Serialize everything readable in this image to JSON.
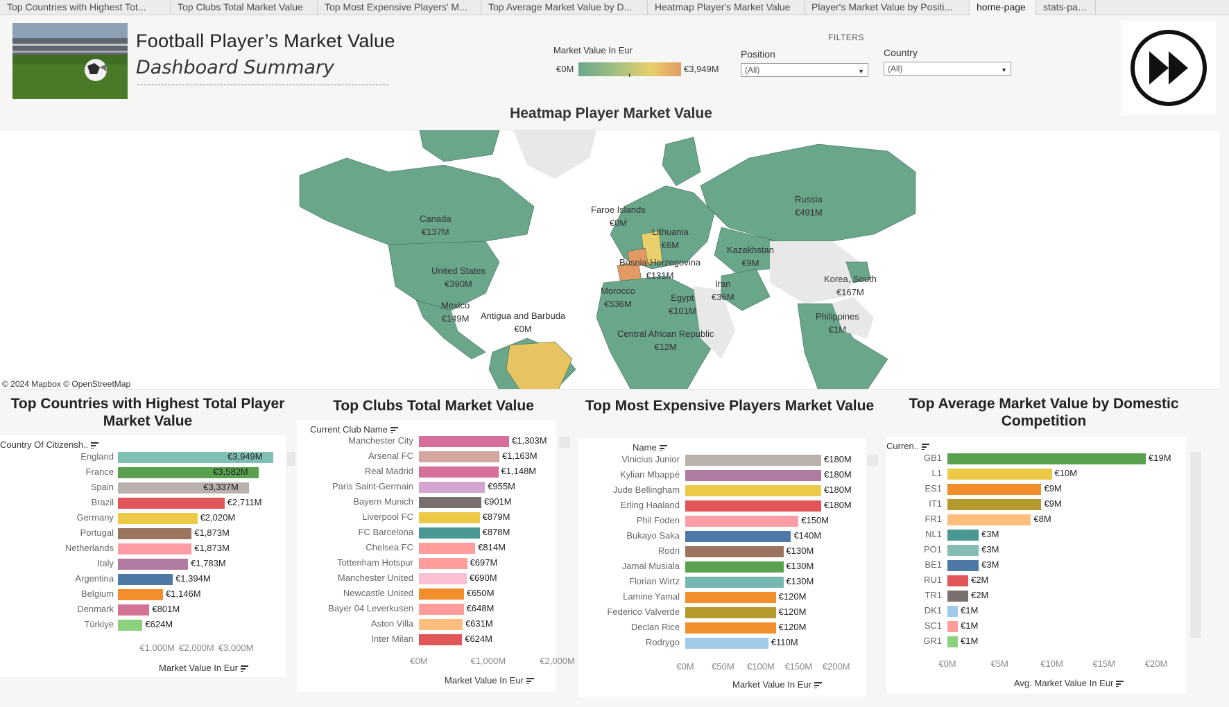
{
  "tabs": [
    {
      "label": "Top Countries with Highest Tot..."
    },
    {
      "label": "Top Clubs Total Market Value"
    },
    {
      "label": "Top Most Expensive Players' M..."
    },
    {
      "label": "Top Average Market Value by D..."
    },
    {
      "label": "Heatmap Player's Market Value"
    },
    {
      "label": "Player's Market Value by Positi..."
    },
    {
      "label": "home-page"
    },
    {
      "label": "stats-page"
    }
  ],
  "header": {
    "title": "Football Player’s Market Value",
    "subtitle": "Dashboard Summary",
    "filters_label": "FILTERS"
  },
  "legend": {
    "title": "Market Value In Eur",
    "min": "€0M",
    "max": "€3,949M"
  },
  "filters": {
    "position": {
      "label": "Position",
      "value": "(All)"
    },
    "country": {
      "label": "Country",
      "value": "(All)"
    }
  },
  "map": {
    "title": "Heatmap Player Market Value",
    "attribution": "© 2024 Mapbox  © OpenStreetMap",
    "labels": [
      {
        "name": "Canada",
        "value": "€137M"
      },
      {
        "name": "United States",
        "value": "€390M"
      },
      {
        "name": "Mexico",
        "value": "€149M"
      },
      {
        "name": "Antigua and Barbuda",
        "value": "€0M"
      },
      {
        "name": "Faroe Islands",
        "value": "€0M"
      },
      {
        "name": "Lithuania",
        "value": "€6M"
      },
      {
        "name": "Bosnia-Herzegovina",
        "value": "€131M"
      },
      {
        "name": "Morocco",
        "value": "€536M"
      },
      {
        "name": "Egypt",
        "value": "€101M"
      },
      {
        "name": "Central African Republic",
        "value": "€12M"
      },
      {
        "name": "Kazakhstan",
        "value": "€9M"
      },
      {
        "name": "Iran",
        "value": "€36M"
      },
      {
        "name": "Russia",
        "value": "€491M"
      },
      {
        "name": "Korea, South",
        "value": "€167M"
      },
      {
        "name": "Philippines",
        "value": "€1M"
      }
    ]
  },
  "countries_chart": {
    "title": "Top Countries with Highest Total Player Market Value",
    "column_header": "Country Of Citizensh..",
    "axis_title": "Market Value In Eur",
    "ticks": [
      "€1,000M",
      "€2,000M",
      "€3,000M"
    ],
    "value_labels": [
      "€3,949M",
      "€3,582M",
      "€3,337M",
      "€2,711M",
      "€2,020M",
      "€1,873M",
      "€1,873M",
      "€1,783M",
      "€1,394M",
      "€1,146M",
      "€801M",
      "€624M"
    ]
  },
  "clubs_chart": {
    "title": "Top Clubs Total Market Value",
    "column_header": "Current Club Name",
    "axis_title": "Market Value In Eur",
    "ticks": [
      "€0M",
      "€1,000M",
      "€2,000M"
    ],
    "value_labels": [
      "€1,303M",
      "€1,163M",
      "€1,148M",
      "€955M",
      "€901M",
      "€879M",
      "€878M",
      "€814M",
      "€697M",
      "€690M",
      "€650M",
      "€648M",
      "€631M",
      "€624M"
    ]
  },
  "players_chart": {
    "title": "Top Most Expensive Players Market Value",
    "column_header": "Name",
    "axis_title": "Market Value In Eur",
    "ticks": [
      "€0M",
      "€50M",
      "€100M",
      "€150M",
      "€200M"
    ],
    "value_labels": [
      "€180M",
      "€180M",
      "€180M",
      "€180M",
      "€150M",
      "€140M",
      "€130M",
      "€130M",
      "€130M",
      "€120M",
      "€120M",
      "€120M",
      "€110M"
    ]
  },
  "competition_chart": {
    "title": "Top Average Market Value by Domestic Competition",
    "column_header": "Curren..",
    "axis_title": "Avg. Market Value In Eur",
    "ticks": [
      "€0M",
      "€5M",
      "€10M",
      "€15M",
      "€20M"
    ],
    "value_labels": [
      "€19M",
      "€10M",
      "€9M",
      "€9M",
      "€8M",
      "€3M",
      "€3M",
      "€3M",
      "€2M",
      "€2M",
      "€1M",
      "€1M",
      "€1M"
    ]
  },
  "chart_data": [
    {
      "type": "bar",
      "title": "Top Countries with Highest Total Player Market Value",
      "ylabel": "Country Of Citizensh..",
      "xlabel": "Market Value In Eur",
      "categories": [
        "England",
        "France",
        "Spain",
        "Brazil",
        "Germany",
        "Portugal",
        "Netherlands",
        "Italy",
        "Argentina",
        "Belgium",
        "Denmark",
        "Türkiye"
      ],
      "values": [
        3949,
        3582,
        3337,
        2711,
        2020,
        1873,
        1873,
        1783,
        1394,
        1146,
        801,
        624
      ],
      "xlim": [
        0,
        3949
      ],
      "colors": [
        "#7fbfb4",
        "#59a14f",
        "#bab0ac",
        "#e15759",
        "#edc948",
        "#9c755f",
        "#ff9da7",
        "#b07aa1",
        "#4e79a7",
        "#f28e2b",
        "#d37295",
        "#8cd17d"
      ]
    },
    {
      "type": "bar",
      "title": "Top Clubs Total Market Value",
      "ylabel": "Current Club Name",
      "xlabel": "Market Value In Eur",
      "categories": [
        "Manchester City",
        "Arsenal FC",
        "Real Madrid",
        "Paris Saint-Germain",
        "Bayern Munich",
        "Liverpool FC",
        "FC Barcelona",
        "Chelsea FC",
        "Tottenham Hotspur",
        "Manchester United",
        "Newcastle United",
        "Bayer 04 Leverkusen",
        "Aston Villa",
        "Inter Milan"
      ],
      "values": [
        1303,
        1163,
        1148,
        955,
        901,
        879,
        878,
        814,
        697,
        690,
        650,
        648,
        631,
        624
      ],
      "xlim": [
        0,
        2000
      ],
      "colors": [
        "#d6709b",
        "#d4a6a0",
        "#d6709b",
        "#d4a6cf",
        "#79706e",
        "#edc948",
        "#499894",
        "#ff9d9a",
        "#ff9d9a",
        "#fabfd2",
        "#f28e2b",
        "#ff9d9a",
        "#ffbe7d",
        "#e15759"
      ]
    },
    {
      "type": "bar",
      "title": "Top Most Expensive Players Market Value",
      "ylabel": "Name",
      "xlabel": "Market Value In Eur",
      "categories": [
        "Vinicius Junior",
        "Kylian Mbappé",
        "Jude Bellingham",
        "Erling Haaland",
        "Phil Foden",
        "Bukayo Saka",
        "Rodri",
        "Jamal Musiala",
        "Florian Wirtz",
        "Lamine Yamal",
        "Federico Valverde",
        "Declan Rice",
        "Rodrygo"
      ],
      "values": [
        180,
        180,
        180,
        180,
        150,
        140,
        130,
        130,
        130,
        120,
        120,
        120,
        110
      ],
      "xlim": [
        0,
        200
      ],
      "colors": [
        "#bab0ac",
        "#b07aa1",
        "#edc948",
        "#e15759",
        "#ff9da7",
        "#4e79a7",
        "#9c755f",
        "#59a14f",
        "#76b7b2",
        "#f28e2b",
        "#b6992d",
        "#f28e2b",
        "#a0cbe8"
      ]
    },
    {
      "type": "bar",
      "title": "Top Average Market Value by Domestic Competition",
      "ylabel": "Curren..",
      "xlabel": "Avg. Market Value In Eur",
      "categories": [
        "GB1",
        "L1",
        "ES1",
        "IT1",
        "FR1",
        "NL1",
        "PO1",
        "BE1",
        "RU1",
        "TR1",
        "DK1",
        "SC1",
        "GR1"
      ],
      "values": [
        19,
        10,
        9,
        9,
        8,
        3,
        3,
        3,
        2,
        2,
        1,
        1,
        1
      ],
      "xlim": [
        0,
        20
      ],
      "colors": [
        "#59a14f",
        "#edc948",
        "#f28e2b",
        "#b6992d",
        "#ffbe7d",
        "#499894",
        "#86bcb6",
        "#4e79a7",
        "#e15759",
        "#79706e",
        "#a0cbe8",
        "#ff9d9a",
        "#8cd17d"
      ]
    }
  ]
}
